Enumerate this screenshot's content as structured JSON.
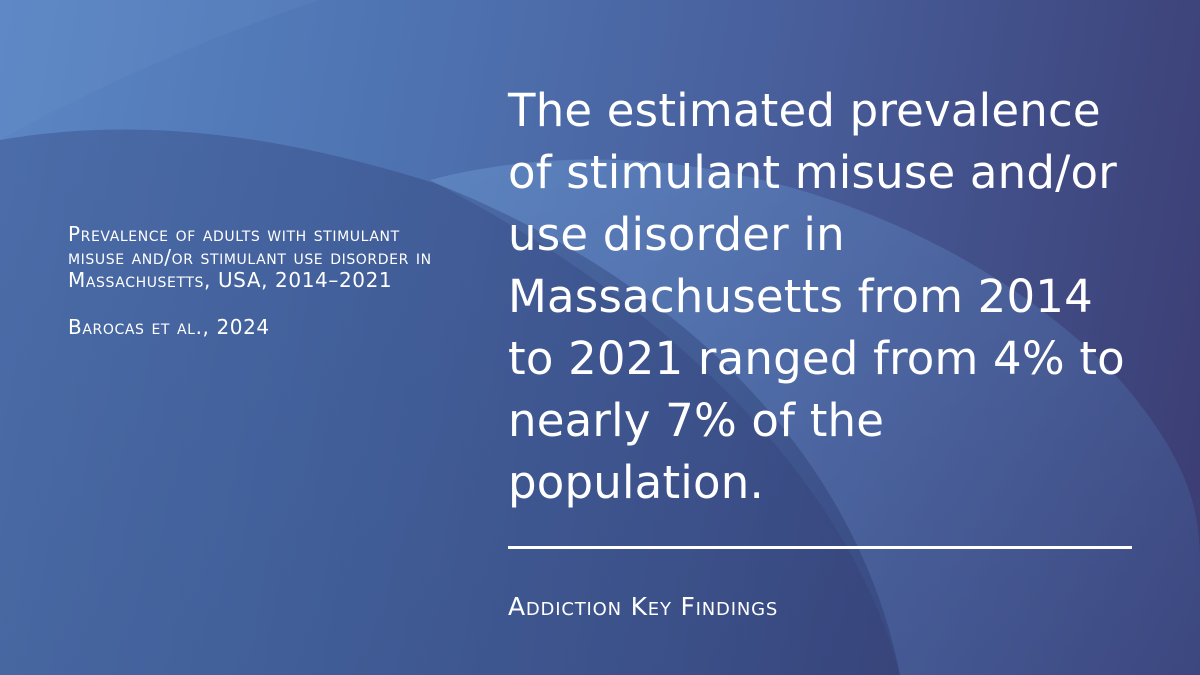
{
  "caption": {
    "description": "Prevalence of adults with stimulant misuse and/or stimulant use disorder in Massachusetts, USA, 2014–2021",
    "source": "Barocas et al., 2024"
  },
  "headline": "The estimated prevalence of stimulant misuse and/or use disorder in Massachusetts from 2014 to 2021 ranged from 4% to nearly 7% of the population.",
  "footer": "Addiction Key Findings",
  "colors": {
    "background_light": "#5b86c4",
    "background_dark": "#3b3c72",
    "text": "#ffffff"
  }
}
